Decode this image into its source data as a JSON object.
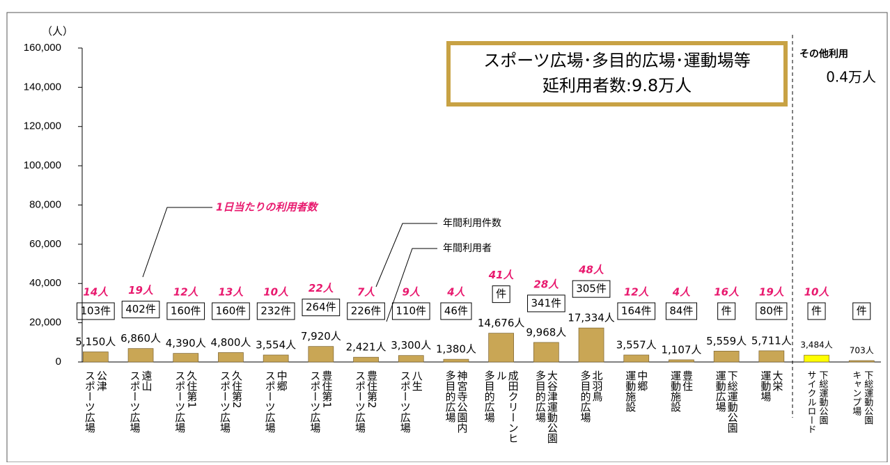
{
  "chart_data": {
    "type": "bar",
    "y_label": "（人）",
    "categories": [
      [
        "公津",
        "スポーツ広場"
      ],
      [
        "遠山",
        "スポーツ広場"
      ],
      [
        "久住第1",
        "スポーツ広場"
      ],
      [
        "久住第2",
        "スポーツ広場"
      ],
      [
        "中郷",
        "スポーツ広場"
      ],
      [
        "豊住第1",
        "スポーツ広場"
      ],
      [
        "豊住第2",
        "スポーツ広場"
      ],
      [
        "八生",
        "スポーツ広場"
      ],
      [
        "神宮寺公園内",
        "多目的広場"
      ],
      [
        "成田クリーンヒ",
        "ル",
        "多目的広場"
      ],
      [
        "大谷津運動公園",
        "多目的広場"
      ],
      [
        "北羽鳥",
        "多目的広場"
      ],
      [
        "中郷",
        "運動施設"
      ],
      [
        "豊住",
        "運動施設"
      ],
      [
        "下総運動公園",
        "運動広場"
      ],
      [
        "大栄",
        "運動場"
      ],
      [
        "下総運動公園",
        "サイクルロード"
      ],
      [
        "下総運動公園",
        "キャンプ場"
      ]
    ],
    "values": [
      5150,
      6860,
      4390,
      4800,
      3554,
      7920,
      2421,
      3300,
      1380,
      14676,
      9968,
      17334,
      3557,
      1107,
      5559,
      5711,
      3484,
      703
    ],
    "value_labels": [
      "5,150人",
      "6,860人",
      "4,390人",
      "4,800人",
      "3,554人",
      "7,920人",
      "2,421人",
      "3,300人",
      "1,380人",
      "14,676人",
      "9,968人",
      "17,334人",
      "3,557人",
      "1,107人",
      "5,559人",
      "5,711人",
      "3,484人",
      "703人"
    ],
    "colors": [
      "#c9a655",
      "#c9a655",
      "#c9a655",
      "#c9a655",
      "#c9a655",
      "#c9a655",
      "#c9a655",
      "#c9a655",
      "#c9a655",
      "#c9a655",
      "#c9a655",
      "#c9a655",
      "#c9a655",
      "#c9a655",
      "#c9a655",
      "#c9a655",
      "#ffff00",
      "#c9a655"
    ],
    "counts": [
      "103件",
      "402件",
      "160件",
      "160件",
      "232件",
      "264件",
      "226件",
      "110件",
      "46件",
      "件",
      "341件",
      "305件",
      "164件",
      "84件",
      "件",
      "80件",
      "件",
      "件"
    ],
    "daily": [
      "14人",
      "19人",
      "12人",
      "13人",
      "10人",
      "22人",
      "7人",
      "9人",
      "4人",
      "41人",
      "28人",
      "48人",
      "12人",
      "4人",
      "16人",
      "19人",
      "10人",
      null
    ],
    "ylim": [
      0,
      160000
    ],
    "yticks": [
      0,
      {
        "value": 20000,
        "label": "20,000"
      },
      {
        "value": 40000,
        "label": "40,000"
      },
      {
        "value": 60000,
        "label": "60,000"
      },
      {
        "value": 80000,
        "label": "80,000"
      },
      {
        "value": 100000,
        "label": "100,000"
      },
      {
        "value": 120000,
        "label": "120,000"
      },
      {
        "value": 140000,
        "label": "140,000"
      },
      {
        "value": 160000,
        "label": "160,000"
      }
    ],
    "summary_box": [
      "スポーツ広場･多目的広場･運動場等",
      "延利用者数:9.8万人"
    ],
    "other_label": "その他利用",
    "other_value": "0.4万人",
    "annotations": {
      "daily": "1日当たりの利用者数",
      "counts": "年間利用件数",
      "users": "年間利用者"
    }
  }
}
